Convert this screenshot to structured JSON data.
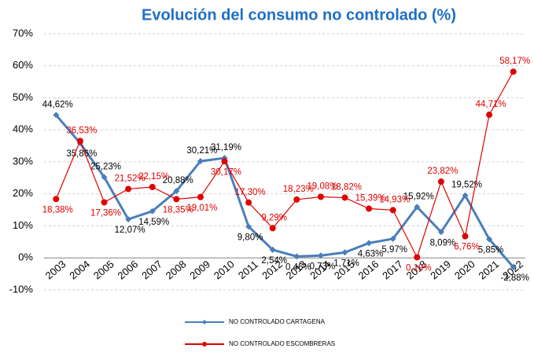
{
  "chart_data": {
    "type": "line",
    "title": "Evolución del consumo no controlado (%)",
    "categories": [
      "2003",
      "2004",
      "2005",
      "2006",
      "2007",
      "2008",
      "2009",
      "2010",
      "2011",
      "2012",
      "2013",
      "2014",
      "2015",
      "2016",
      "2017",
      "2018",
      "2019",
      "2020",
      "2021",
      "2022"
    ],
    "series": [
      {
        "name": "NO CONTROLADO CARTAGENA",
        "color": "#4a7ebb",
        "values": [
          44.62,
          35.86,
          25.23,
          12.07,
          14.59,
          20.88,
          30.21,
          31.19,
          9.8,
          2.54,
          0.46,
          0.73,
          1.71,
          4.63,
          5.97,
          15.92,
          8.09,
          19.52,
          5.85,
          -2.88
        ],
        "value_labels": [
          "44,62%",
          "35,86%",
          "25,23%",
          "12,07%",
          "14,59%",
          "20,88%",
          "30,21%",
          "31,19%",
          "9,80%",
          "2,54%",
          "0,46%",
          "0,73%",
          "1,71%",
          "4,63%",
          "5,97%",
          "15,92%",
          "8,09%",
          "19,52%",
          "5,85%",
          "-2,88%"
        ]
      },
      {
        "name": "NO CONTROLADO ESCOMBRERAS",
        "color": "#e00000",
        "values": [
          18.38,
          36.53,
          17.36,
          21.52,
          22.15,
          18.35,
          19.01,
          30.17,
          17.3,
          9.29,
          18.23,
          19.08,
          18.82,
          15.39,
          14.93,
          0.19,
          23.82,
          6.76,
          44.71,
          58.17
        ],
        "value_labels": [
          "18,38%",
          "36,53%",
          "17,36%",
          "21,52%",
          "22,15%",
          "18,35%",
          "19,01%",
          "30,17%",
          "17,30%",
          "9,29%",
          "18,23%",
          "19,08%",
          "18,82%",
          "15,39%",
          "14,93%",
          "0,19%",
          "23,82%",
          "6,76%",
          "44,71%",
          "58,17%"
        ]
      }
    ],
    "ylim": [
      -10,
      70
    ],
    "yticks": [
      {
        "value": -10,
        "label": "-10%"
      },
      {
        "value": 0,
        "label": "0%"
      },
      {
        "value": 10,
        "label": "10%"
      },
      {
        "value": 20,
        "label": "20%"
      },
      {
        "value": 30,
        "label": "30%"
      },
      {
        "value": 40,
        "label": "40%"
      },
      {
        "value": 50,
        "label": "50%"
      },
      {
        "value": 60,
        "label": "60%"
      },
      {
        "value": 70,
        "label": "70%"
      }
    ],
    "grid": true
  }
}
